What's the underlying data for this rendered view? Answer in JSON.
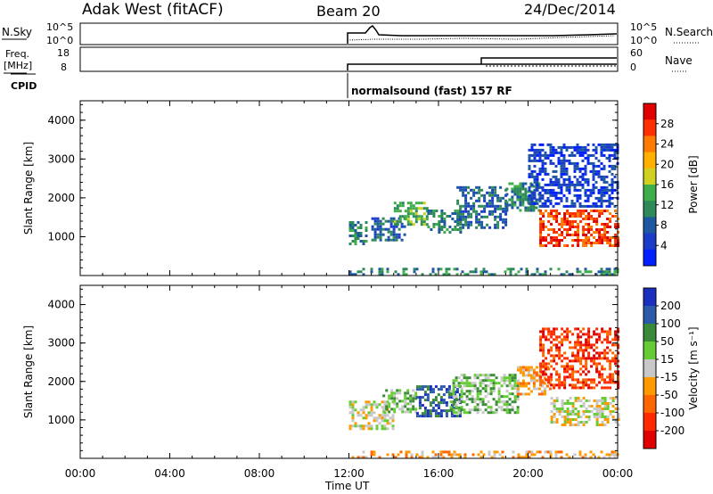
{
  "header": {
    "radar": "Adak West (fitACF)",
    "beam": "Beam 20",
    "date": "24/Dec/2014"
  },
  "params": {
    "nsky_label": "N.Sky",
    "nsearch_label": "N.Search",
    "left_ticks_top": [
      "10^5",
      "10^0"
    ],
    "right_ticks_top": [
      "10^5",
      "10^0"
    ],
    "freq_label_line1": "Freq.",
    "freq_label_line2": "[MHz]",
    "freq_ticks": [
      "18",
      "8"
    ],
    "nave_label": "Nave",
    "nave_ticks": [
      "60",
      "0"
    ],
    "cpid_label": "CPID",
    "cpid_text": "normalsound (fast) 157 RF"
  },
  "colors": {
    "power": [
      "#0020ff",
      "#1a3cc8",
      "#1e58a0",
      "#2f8a5a",
      "#3fae4a",
      "#d0d020",
      "#ffb000",
      "#ff7a00",
      "#ff3000",
      "#e00000"
    ],
    "velocity": [
      "#1b2fbf",
      "#2b5aa8",
      "#3a8a3a",
      "#66cc33",
      "#c8c8c8",
      "#ff9900",
      "#ff6600",
      "#ff2a00",
      "#e00000"
    ]
  },
  "chart_data": [
    {
      "type": "heatmap",
      "name": "power",
      "ylabel": "Slant Range [km]",
      "xlabel": "Time UT",
      "xticks": [
        "00:00",
        "04:00",
        "08:00",
        "12:00",
        "16:00",
        "20:00",
        "00:00"
      ],
      "yticks": [
        "1000",
        "2000",
        "3000",
        "4000"
      ],
      "ylim": [
        0,
        4500
      ],
      "xlim_hours": [
        0,
        24
      ],
      "colorbar": {
        "label": "Power [dB]",
        "ticks": [
          "28",
          "24",
          "20",
          "16",
          "12",
          "8",
          "4"
        ]
      },
      "regions": [
        {
          "t0": 12.0,
          "t1": 12.8,
          "r0": 800,
          "r1": 1400,
          "level": 3
        },
        {
          "t0": 13.0,
          "t1": 14.5,
          "r0": 900,
          "r1": 1500,
          "level": 2
        },
        {
          "t0": 14.0,
          "t1": 15.5,
          "r0": 1300,
          "r1": 1900,
          "level": 4
        },
        {
          "t0": 15.5,
          "t1": 17.0,
          "r0": 1100,
          "r1": 1700,
          "level": 3
        },
        {
          "t0": 16.8,
          "t1": 19.0,
          "r0": 1200,
          "r1": 2300,
          "level": 2
        },
        {
          "t0": 19.0,
          "t1": 20.5,
          "r0": 1700,
          "r1": 2400,
          "level": 3
        },
        {
          "t0": 20.5,
          "t1": 24.0,
          "r0": 800,
          "r1": 1700,
          "level": 8
        },
        {
          "t0": 20.0,
          "t1": 24.0,
          "r0": 1800,
          "r1": 3400,
          "level": 1
        },
        {
          "t0": 12.0,
          "t1": 24.0,
          "r0": 0,
          "r1": 200,
          "level": 3
        }
      ]
    },
    {
      "type": "heatmap",
      "name": "velocity",
      "ylabel": "Slant Range [km]",
      "xlabel": "Time UT",
      "xticks": [
        "00:00",
        "04:00",
        "08:00",
        "12:00",
        "16:00",
        "20:00",
        "00:00"
      ],
      "yticks": [
        "1000",
        "2000",
        "3000",
        "4000"
      ],
      "ylim": [
        0,
        4500
      ],
      "xlim_hours": [
        0,
        24
      ],
      "colorbar": {
        "label": "Velocity [m s⁻¹]",
        "ticks": [
          "200",
          "100",
          "50",
          "15",
          "-15",
          "-50",
          "-100",
          "-200"
        ]
      },
      "regions": [
        {
          "t0": 12.0,
          "t1": 14.0,
          "r0": 800,
          "r1": 1500,
          "level": 4
        },
        {
          "t0": 13.5,
          "t1": 15.0,
          "r0": 1200,
          "r1": 1800,
          "level": 3
        },
        {
          "t0": 15.0,
          "t1": 17.0,
          "r0": 1100,
          "r1": 1900,
          "level": 1
        },
        {
          "t0": 16.5,
          "t1": 19.5,
          "r0": 1200,
          "r1": 2200,
          "level": 3
        },
        {
          "t0": 19.5,
          "t1": 21.0,
          "r0": 1700,
          "r1": 2400,
          "level": 5
        },
        {
          "t0": 21.0,
          "t1": 24.0,
          "r0": 900,
          "r1": 1600,
          "level": 4
        },
        {
          "t0": 20.5,
          "t1": 24.0,
          "r0": 1800,
          "r1": 3400,
          "level": 7
        },
        {
          "t0": 12.0,
          "t1": 24.0,
          "r0": 0,
          "r1": 200,
          "level": 5
        }
      ]
    }
  ],
  "cpid_start_hour": 12.0,
  "nave_step_hour": 18.0
}
